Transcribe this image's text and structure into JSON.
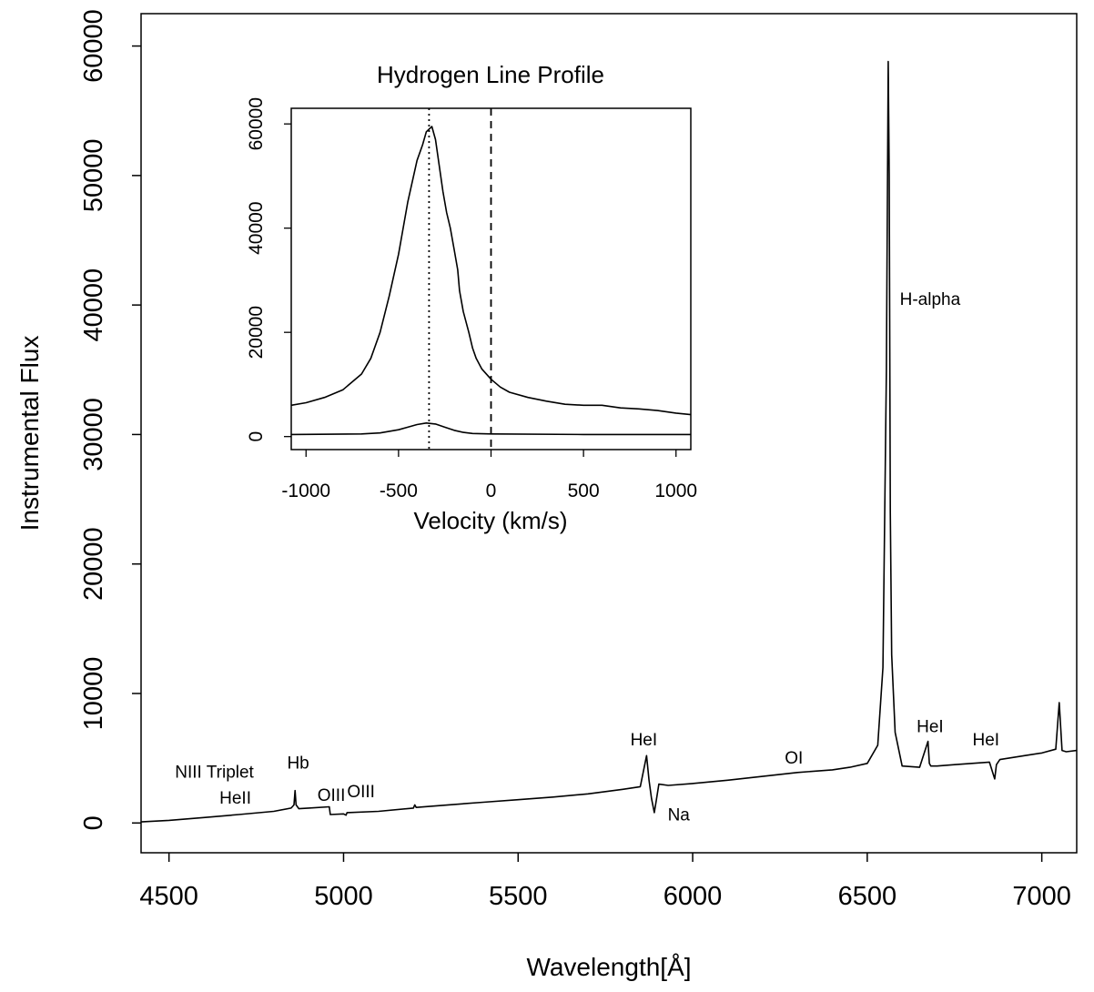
{
  "chart_data": [
    {
      "type": "line",
      "xlabel": "Wavelength[Å]",
      "ylabel": "Instrumental Flux",
      "xlim": [
        4420,
        7100
      ],
      "ylim": [
        -2300,
        62500
      ],
      "x_ticks": [
        "4500",
        "5000",
        "5500",
        "6000",
        "6500",
        "7000"
      ],
      "y_ticks": [
        "0",
        "10000",
        "20000",
        "30000",
        "40000",
        "50000",
        "60000"
      ],
      "series": [
        {
          "x": [
            4420,
            4500,
            4600,
            4700,
            4800,
            4850,
            4858,
            4861,
            4864,
            4872,
            4900,
            4959,
            4962,
            5000,
            5007,
            5010,
            5100,
            5200,
            5204,
            5208,
            5300,
            5400,
            5500,
            5600,
            5700,
            5800,
            5850,
            5868,
            5875,
            5882,
            5890,
            5896,
            5903,
            5930,
            6000,
            6100,
            6200,
            6300,
            6400,
            6450,
            6500,
            6530,
            6545,
            6555,
            6560,
            6563,
            6566,
            6570,
            6580,
            6600,
            6650,
            6674,
            6678,
            6682,
            6700,
            6750,
            6800,
            6850,
            6865,
            6870,
            6880,
            6950,
            7000,
            7040,
            7050,
            7058,
            7070,
            7100
          ],
          "y": [
            80,
            200,
            420,
            650,
            900,
            1150,
            1400,
            2500,
            1400,
            1100,
            1150,
            1250,
            650,
            700,
            600,
            800,
            900,
            1150,
            1400,
            1200,
            1400,
            1600,
            1800,
            2000,
            2250,
            2600,
            2800,
            5200,
            3300,
            1900,
            800,
            1800,
            3000,
            2900,
            3050,
            3300,
            3600,
            3900,
            4100,
            4300,
            4600,
            6000,
            12000,
            35000,
            58800,
            50000,
            24000,
            13000,
            7000,
            4400,
            4300,
            6300,
            4600,
            4400,
            4400,
            4500,
            4600,
            4700,
            3400,
            4500,
            4900,
            5200,
            5400,
            5700,
            9300,
            5600,
            5500,
            5600
          ],
          "color": "#000000"
        }
      ],
      "annotations": [
        {
          "text": "NIII Triplet",
          "x": 4630,
          "y": 3500
        },
        {
          "text": "HeII",
          "x": 4690,
          "y": 1500
        },
        {
          "text": "Hb",
          "x": 4870,
          "y": 4200
        },
        {
          "text": "OIII",
          "x": 4965,
          "y": 1700
        },
        {
          "text": "OIII",
          "x": 5050,
          "y": 2000
        },
        {
          "text": "HeI",
          "x": 5860,
          "y": 6000
        },
        {
          "text": "Na",
          "x": 5960,
          "y": 200
        },
        {
          "text": "OI",
          "x": 6290,
          "y": 4600
        },
        {
          "text": "H-alpha",
          "x": 6680,
          "y": 40000
        },
        {
          "text": "HeI",
          "x": 6680,
          "y": 7000
        },
        {
          "text": "HeI",
          "x": 6840,
          "y": 6000
        }
      ]
    },
    {
      "type": "line",
      "title": "Hydrogen Line Profile",
      "xlabel": "Velocity (km/s)",
      "ylabel": "",
      "xlim": [
        -1080,
        1080
      ],
      "ylim": [
        -2500,
        63000
      ],
      "x_ticks": [
        "-1000",
        "-500",
        "0",
        "500",
        "1000"
      ],
      "y_ticks": [
        "0",
        "20000",
        "40000",
        "60000"
      ],
      "series": [
        {
          "x": [
            -1080,
            -1000,
            -900,
            -800,
            -700,
            -650,
            -600,
            -550,
            -500,
            -450,
            -400,
            -370,
            -350,
            -320,
            -300,
            -280,
            -260,
            -240,
            -220,
            -200,
            -180,
            -170,
            -150,
            -120,
            -100,
            -80,
            -50,
            0,
            50,
            100,
            200,
            300,
            400,
            500,
            600,
            700,
            800,
            900,
            1000,
            1080
          ],
          "y": [
            6000,
            6500,
            7500,
            9000,
            12000,
            15000,
            20000,
            27000,
            35000,
            45000,
            53000,
            56000,
            58500,
            59500,
            57000,
            52000,
            47000,
            43000,
            40000,
            36000,
            32000,
            28000,
            24000,
            20000,
            17000,
            15000,
            13000,
            11000,
            9500,
            8500,
            7500,
            6800,
            6200,
            6000,
            6000,
            5500,
            5300,
            5000,
            4500,
            4200
          ],
          "color": "#000000"
        },
        {
          "x": [
            -1080,
            -700,
            -600,
            -500,
            -450,
            -400,
            -350,
            -300,
            -250,
            -200,
            -150,
            -100,
            0,
            500,
            1080
          ],
          "y": [
            400,
            500,
            700,
            1300,
            1800,
            2300,
            2600,
            2400,
            1800,
            1200,
            800,
            600,
            500,
            400,
            400
          ],
          "color": "#000000"
        }
      ],
      "reference_lines": [
        {
          "x": -335,
          "style": "dotted"
        },
        {
          "x": 0,
          "style": "dashed"
        }
      ]
    }
  ]
}
